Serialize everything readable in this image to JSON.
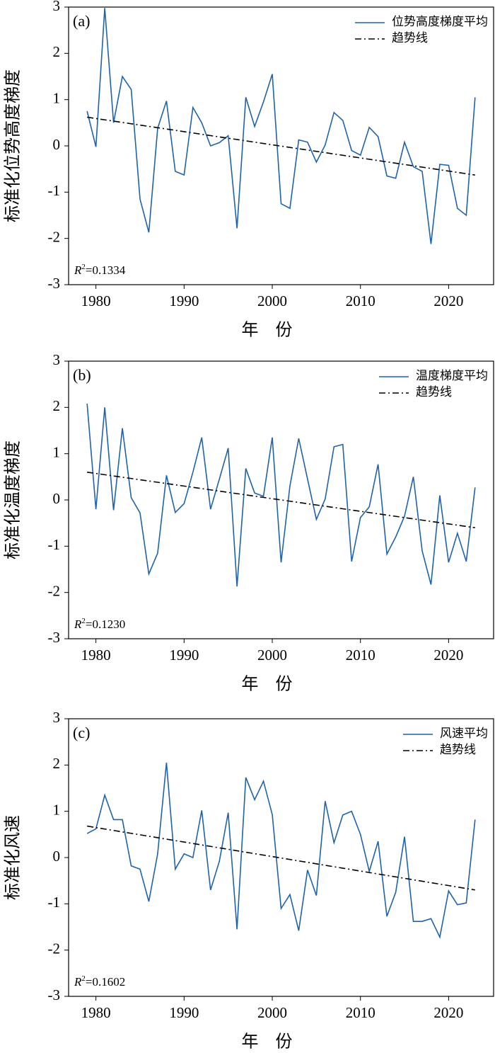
{
  "chart_data": [
    {
      "type": "line",
      "panel_label": "(a)",
      "xlabel": "年　份",
      "ylabel": "标准化位势高度梯度",
      "annotation": {
        "variable": "R",
        "exponent": "2",
        "text": "=0.1334"
      },
      "x": [
        1979,
        1980,
        1981,
        1982,
        1983,
        1984,
        1985,
        1986,
        1987,
        1988,
        1989,
        1990,
        1991,
        1992,
        1993,
        1994,
        1995,
        1996,
        1997,
        1998,
        1999,
        2000,
        2001,
        2002,
        2003,
        2004,
        2005,
        2006,
        2007,
        2008,
        2009,
        2010,
        2011,
        2012,
        2013,
        2014,
        2015,
        2016,
        2017,
        2018,
        2019,
        2020,
        2021,
        2022,
        2023
      ],
      "series": [
        {
          "name": "位势高度梯度平均",
          "color": "#1f62ad",
          "style": "solid",
          "values": [
            0.75,
            -0.02,
            2.98,
            0.5,
            1.5,
            1.22,
            -1.15,
            -1.87,
            0.38,
            0.97,
            -0.55,
            -0.63,
            0.83,
            0.5,
            0.0,
            0.07,
            0.22,
            -1.78,
            1.05,
            0.42,
            0.95,
            1.55,
            -1.25,
            -1.35,
            0.13,
            0.08,
            -0.35,
            0.02,
            0.72,
            0.55,
            -0.1,
            -0.2,
            0.4,
            0.2,
            -0.65,
            -0.7,
            0.08,
            -0.45,
            -0.55,
            -2.12,
            -0.4,
            -0.42,
            -1.35,
            -1.5,
            1.05
          ]
        },
        {
          "name": "趋势线",
          "color": "#000000",
          "style": "dashdot",
          "x": [
            1979,
            2023
          ],
          "values": [
            0.62,
            -0.63
          ]
        }
      ],
      "xlim": [
        1976.9,
        2025.1
      ],
      "xticks": [
        1980,
        1990,
        2000,
        2010,
        2020
      ],
      "ylim": [
        -3,
        3
      ],
      "yticks": [
        -3,
        -2,
        -1,
        0,
        1,
        2,
        3
      ],
      "legend": "upper right"
    },
    {
      "type": "line",
      "panel_label": "(b)",
      "xlabel": "年　份",
      "ylabel": "标准化温度梯度",
      "annotation": {
        "variable": "R",
        "exponent": "2",
        "text": "=0.1230"
      },
      "x": [
        1979,
        1980,
        1981,
        1982,
        1983,
        1984,
        1985,
        1986,
        1987,
        1988,
        1989,
        1990,
        1991,
        1992,
        1993,
        1994,
        1995,
        1996,
        1997,
        1998,
        1999,
        2000,
        2001,
        2002,
        2003,
        2004,
        2005,
        2006,
        2007,
        2008,
        2009,
        2010,
        2011,
        2012,
        2013,
        2014,
        2015,
        2016,
        2017,
        2018,
        2019,
        2020,
        2021,
        2022,
        2023
      ],
      "series": [
        {
          "name": "温度梯度平均",
          "color": "#1f62ad",
          "style": "solid",
          "values": [
            2.08,
            -0.2,
            2.0,
            -0.22,
            1.55,
            0.05,
            -0.28,
            -1.6,
            -1.15,
            0.53,
            -0.27,
            -0.08,
            0.6,
            1.35,
            -0.2,
            0.45,
            1.12,
            -1.87,
            0.68,
            0.15,
            0.08,
            1.35,
            -1.35,
            0.3,
            1.33,
            0.45,
            -0.42,
            0.02,
            1.15,
            1.2,
            -1.33,
            -0.38,
            -0.15,
            0.77,
            -1.17,
            -0.8,
            -0.35,
            0.5,
            -1.1,
            -1.83,
            0.1,
            -1.35,
            -0.72,
            -1.33,
            0.27
          ]
        },
        {
          "name": "趋势线",
          "color": "#000000",
          "style": "dashdot",
          "x": [
            1979,
            2023
          ],
          "values": [
            0.6,
            -0.6
          ]
        }
      ],
      "xlim": [
        1976.9,
        2025.1
      ],
      "xticks": [
        1980,
        1990,
        2000,
        2010,
        2020
      ],
      "ylim": [
        -3,
        3
      ],
      "yticks": [
        -3,
        -2,
        -1,
        0,
        1,
        2,
        3
      ],
      "legend": "upper right"
    },
    {
      "type": "line",
      "panel_label": "(c)",
      "xlabel": "年　份",
      "ylabel": "标准化风速",
      "annotation": {
        "variable": "R",
        "exponent": "2",
        "text": "=0.1602"
      },
      "x": [
        1979,
        1980,
        1981,
        1982,
        1983,
        1984,
        1985,
        1986,
        1987,
        1988,
        1989,
        1990,
        1991,
        1992,
        1993,
        1994,
        1995,
        1996,
        1997,
        1998,
        1999,
        2000,
        2001,
        2002,
        2003,
        2004,
        2005,
        2006,
        2007,
        2008,
        2009,
        2010,
        2011,
        2012,
        2013,
        2014,
        2015,
        2016,
        2017,
        2018,
        2019,
        2020,
        2021,
        2022,
        2023
      ],
      "series": [
        {
          "name": "风速平均",
          "color": "#1f62ad",
          "style": "solid",
          "values": [
            0.52,
            0.62,
            1.35,
            0.82,
            0.82,
            -0.18,
            -0.25,
            -0.95,
            0.08,
            2.05,
            -0.25,
            0.08,
            0.0,
            1.02,
            -0.7,
            -0.08,
            0.97,
            -1.55,
            1.73,
            1.25,
            1.65,
            0.93,
            -1.1,
            -0.8,
            -1.58,
            -0.27,
            -0.82,
            1.22,
            0.32,
            0.92,
            1.0,
            0.5,
            -0.3,
            0.35,
            -1.27,
            -0.75,
            0.45,
            -1.38,
            -1.38,
            -1.32,
            -1.72,
            -0.72,
            -1.02,
            -0.98,
            0.82
          ]
        },
        {
          "name": "趋势线",
          "color": "#000000",
          "style": "dashdot",
          "x": [
            1979,
            2023
          ],
          "values": [
            0.68,
            -0.7
          ]
        }
      ],
      "xlim": [
        1976.9,
        2025.1
      ],
      "xticks": [
        1980,
        1990,
        2000,
        2010,
        2020
      ],
      "ylim": [
        -3,
        3
      ],
      "yticks": [
        -3,
        -2,
        -1,
        0,
        1,
        2,
        3
      ],
      "legend": "upper right"
    }
  ]
}
